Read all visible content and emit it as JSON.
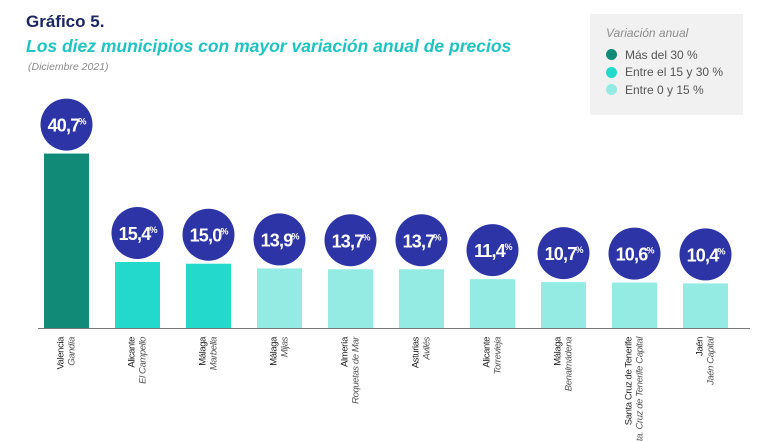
{
  "header": {
    "kicker": "Gráfico 5.",
    "title": "Los diez municipios con mayor variación anual de precios",
    "subtitle": "(Diciembre 2021)"
  },
  "legend": {
    "title": "Variación anual",
    "items": [
      {
        "label": "Más del 30 %",
        "color": "#128a78"
      },
      {
        "label": "Entre el 15 y 30 %",
        "color": "#22d9cb"
      },
      {
        "label": "Entre 0 y 15 %",
        "color": "#93ebe4"
      }
    ]
  },
  "colors": {
    "bubble": "#2d35a6",
    "bubble_text": "#ffffff",
    "axis": "#777777"
  },
  "chart_data": {
    "type": "bar",
    "unit": "%",
    "ylim": [
      0,
      42
    ],
    "categories": [
      {
        "province": "Valencia",
        "municipality": "Gandía",
        "value": 40.7,
        "label": "40,7",
        "band": 0
      },
      {
        "province": "Alicante",
        "municipality": "El Campello",
        "value": 15.4,
        "label": "15,4",
        "band": 1
      },
      {
        "province": "Málaga",
        "municipality": "Marbella",
        "value": 15.0,
        "label": "15,0",
        "band": 1
      },
      {
        "province": "Málaga",
        "municipality": "Mijas",
        "value": 13.9,
        "label": "13,9",
        "band": 2
      },
      {
        "province": "Almería",
        "municipality": "Roquetas de Mar",
        "value": 13.7,
        "label": "13,7",
        "band": 2
      },
      {
        "province": "Asturias",
        "municipality": "Avilés",
        "value": 13.7,
        "label": "13,7",
        "band": 2
      },
      {
        "province": "Alicante",
        "municipality": "Torrevieja",
        "value": 11.4,
        "label": "11,4",
        "band": 2
      },
      {
        "province": "Málaga",
        "municipality": "Benalmádena",
        "value": 10.7,
        "label": "10,7",
        "band": 2
      },
      {
        "province": "Santa Cruz de Tenerife",
        "municipality": "Sta. Cruz de Tenerife Capital",
        "value": 10.6,
        "label": "10,6",
        "band": 2
      },
      {
        "province": "Jaén",
        "municipality": "Jaén Capital",
        "value": 10.4,
        "label": "10,4",
        "band": 2
      }
    ]
  }
}
